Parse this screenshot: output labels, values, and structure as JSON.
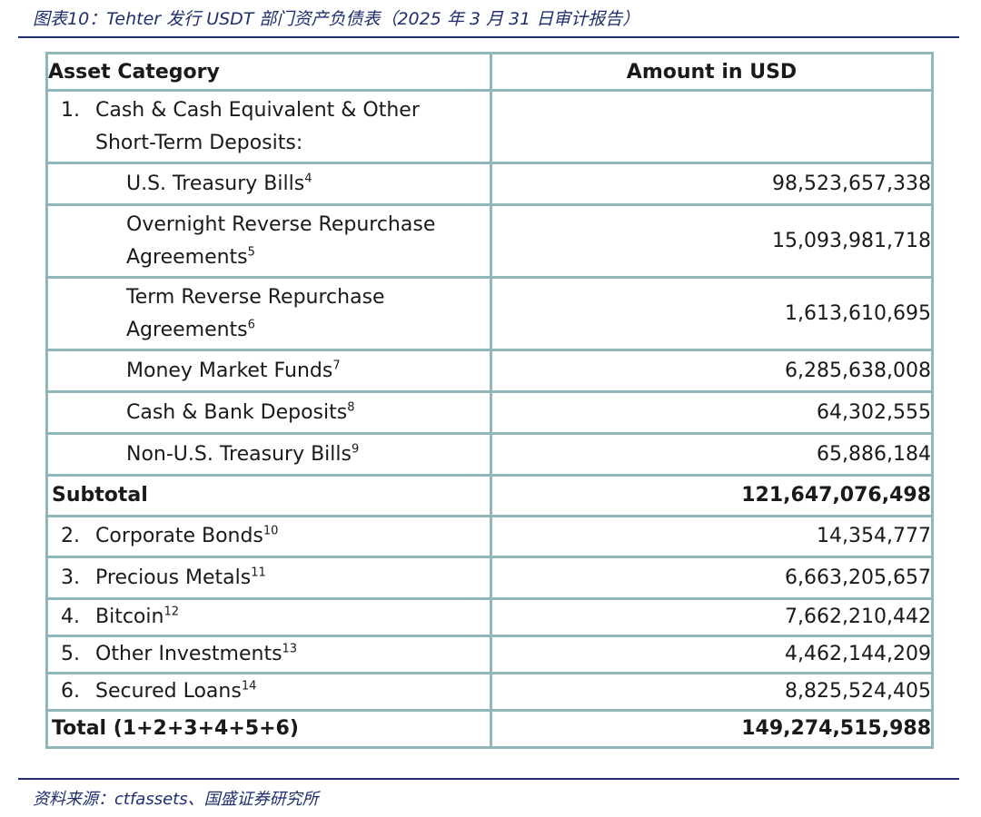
{
  "figure_title": "图表10：Tehter 发行 USDT 部门资产负债表（2025 年 3 月 31 日审计报告）",
  "source": "资料来源：ctfassets、国盛证券研究所",
  "table": {
    "header": {
      "category": "Asset Category",
      "amount": "Amount in USD"
    },
    "section1": {
      "number": "1.",
      "label_line1": "Cash & Cash Equivalent & Other",
      "label_line2": "Short-Term Deposits:"
    },
    "sub_items": [
      {
        "label": "U.S. Treasury Bills",
        "footnote": "4",
        "amount": "98,523,657,338"
      },
      {
        "label_line1": "Overnight Reverse Repurchase",
        "label_line2": "Agreements",
        "footnote": "5",
        "amount": "15,093,981,718"
      },
      {
        "label_line1": "Term Reverse Repurchase",
        "label_line2": "Agreements",
        "footnote": "6",
        "amount": "1,613,610,695"
      },
      {
        "label": "Money Market Funds",
        "footnote": "7",
        "amount": "6,285,638,008"
      },
      {
        "label": "Cash & Bank Deposits",
        "footnote": "8",
        "amount": "64,302,555"
      },
      {
        "label": "Non-U.S. Treasury Bills",
        "footnote": "9",
        "amount": "65,886,184"
      }
    ],
    "subtotal": {
      "label": "Subtotal",
      "amount": "121,647,076,498"
    },
    "items": [
      {
        "number": "2.",
        "label": "Corporate Bonds",
        "footnote": "10",
        "amount": "14,354,777"
      },
      {
        "number": "3.",
        "label": "Precious Metals",
        "footnote": "11",
        "amount": "6,663,205,657"
      },
      {
        "number": "4.",
        "label": "Bitcoin",
        "footnote": "12",
        "amount": "7,662,210,442"
      },
      {
        "number": "5.",
        "label": "Other Investments",
        "footnote": "13",
        "amount": "4,462,144,209"
      },
      {
        "number": "6.",
        "label": "Secured Loans",
        "footnote": "14",
        "amount": "8,825,524,405"
      }
    ],
    "total": {
      "label": "Total (1+2+3+4+5+6)",
      "amount": "149,274,515,988"
    }
  },
  "colors": {
    "title_blue": "#1f2f6e",
    "table_border": "#8fb6b8"
  }
}
